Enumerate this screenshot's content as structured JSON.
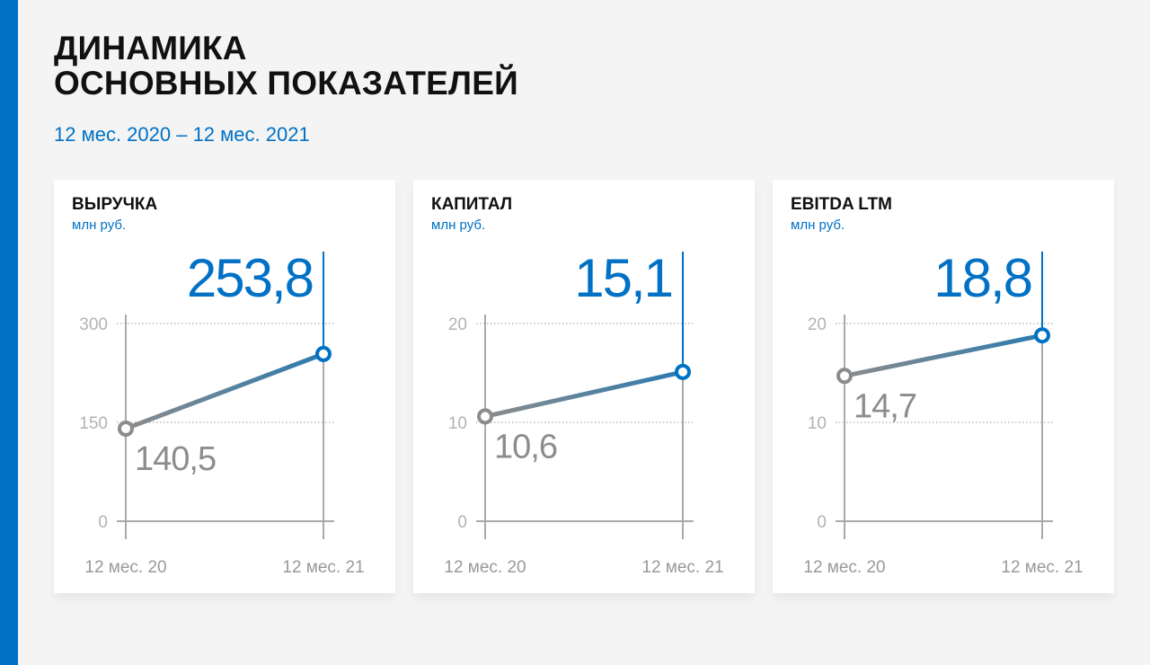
{
  "header": {
    "title_line1": "ДИНАМИКА",
    "title_line2": "ОСНОВНЫХ ПОКАЗАТЕЛЕЙ",
    "subtitle": "12 мес. 2020 – 12 мес. 2021"
  },
  "colors": {
    "accent": "#0071c5",
    "start_point": "#8c8c8c",
    "line_end": "#2a7ab0",
    "axis": "#aaaaaa",
    "grid": "#999999"
  },
  "chart_data": [
    {
      "type": "line",
      "title": "ВЫРУЧКА",
      "unit": "млн руб.",
      "categories": [
        "12 мес. 20",
        "12 мес. 21"
      ],
      "values": [
        140.5,
        253.8
      ],
      "value_labels": [
        "140,5",
        "253,8"
      ],
      "y_ticks": [
        "0",
        "150",
        "300"
      ],
      "ylim": [
        0,
        300
      ],
      "grid": true
    },
    {
      "type": "line",
      "title": "КАПИТАЛ",
      "unit": "млн руб.",
      "categories": [
        "12 мес. 20",
        "12 мес. 21"
      ],
      "values": [
        10.6,
        15.1
      ],
      "value_labels": [
        "10,6",
        "15,1"
      ],
      "y_ticks": [
        "0",
        "10",
        "20"
      ],
      "ylim": [
        0,
        20
      ],
      "grid": true
    },
    {
      "type": "line",
      "title": "EBITDA LTM",
      "unit": "млн руб.",
      "categories": [
        "12 мес. 20",
        "12 мес. 21"
      ],
      "values": [
        14.7,
        18.8
      ],
      "value_labels": [
        "14,7",
        "18,8"
      ],
      "y_ticks": [
        "0",
        "10",
        "20"
      ],
      "ylim": [
        0,
        20
      ],
      "grid": true
    }
  ]
}
